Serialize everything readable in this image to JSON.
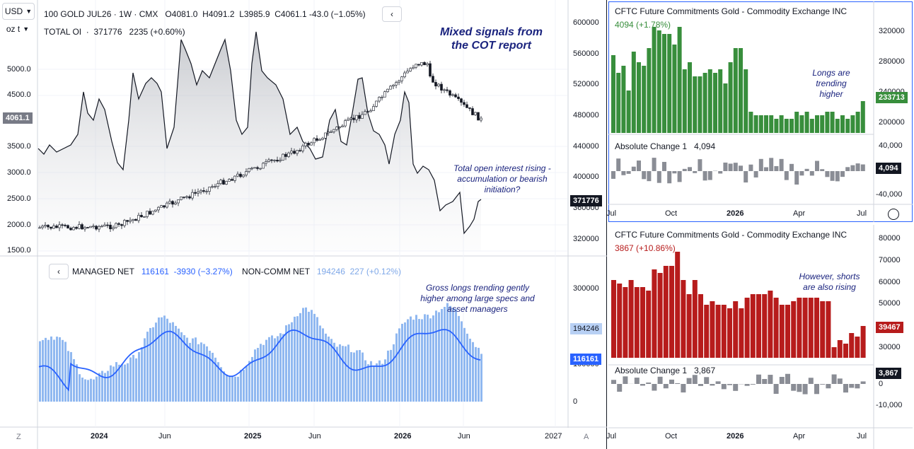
{
  "currency_select": "USD",
  "unit_select": "oz t",
  "main": {
    "symbol": "100 GOLD JUL26",
    "interval": "1W",
    "exchange": "CMX",
    "o_label": "O",
    "o": "4081.0",
    "h_label": "H",
    "h": "4091.2",
    "l_label": "L",
    "l": "3985.9",
    "c_label": "C",
    "c": "4061.1",
    "change": "-43.0 (−1.05%)",
    "oi_label": "TOTAL OI",
    "oi_value": "371776",
    "oi_change": "2235 (+0.60%)",
    "price_badge": "4061.1",
    "oi_badge": "371776",
    "annotation_title": "Mixed signals from the COT report",
    "annotation_oi": "Total open interest rising - accumulation or bearish initiation?",
    "price_ticks": [
      "5000.0",
      "4500.0",
      "4061.1",
      "3500.0",
      "3000.0",
      "2500.0",
      "2000.0",
      "1500.0"
    ],
    "oi_ticks": [
      "600000",
      "560000",
      "520000",
      "480000",
      "440000",
      "400000",
      "360000",
      "320000"
    ]
  },
  "lower": {
    "managed_label": "MANAGED NET",
    "managed_value": "116161",
    "managed_change": "-3930 (−3.27%)",
    "noncomm_label": "NON-COMM NET",
    "noncomm_value": "194246",
    "noncomm_change": "227 (+0.12%)",
    "annotation": "Gross longs trending gently higher among large specs and asset managers",
    "ticks": [
      "300000",
      "200000",
      "100000",
      "0"
    ],
    "badge_noncomm": "194246",
    "badge_managed": "116161"
  },
  "x_axis": [
    "2024",
    "Jun",
    "2025",
    "Jun",
    "2026",
    "Jun",
    "2027"
  ],
  "z_label": "Z",
  "a_label": "A",
  "right_top": {
    "title": "CFTC Future Commitments Gold - Commodity Exchange INC",
    "value": "4094 (+1.78%)",
    "annotation": "Longs are trending higher",
    "ticks": [
      "320000",
      "280000",
      "240000",
      "200000"
    ],
    "badge": "233713",
    "abs_title": "Absolute Change 1",
    "abs_value": "4,094",
    "abs_ticks": [
      "40,000",
      "0",
      "-40,000"
    ],
    "abs_badge": "4,094",
    "x_axis": [
      "Jul",
      "Oct",
      "2026",
      "Apr",
      "Jul"
    ]
  },
  "right_bottom": {
    "title": "CFTC Future Commitments Gold - Commodity Exchange INC",
    "value": "3867 (+10.86%)",
    "annotation": "However, shorts are also rising",
    "ticks": [
      "80000",
      "70000",
      "60000",
      "50000",
      "40000",
      "30000"
    ],
    "badge": "39467",
    "abs_title": "Absolute Change 1",
    "abs_value": "3,867",
    "abs_ticks": [
      "0",
      "-10,000"
    ],
    "abs_badge": "3,867",
    "x_axis": [
      "Jul",
      "Oct",
      "2026",
      "Apr",
      "Jul"
    ]
  },
  "colors": {
    "green": "#388e3c",
    "red": "#b71c1c",
    "blue": "#2962ff",
    "lightblue": "#90b8f0",
    "grey": "#787b86"
  }
}
